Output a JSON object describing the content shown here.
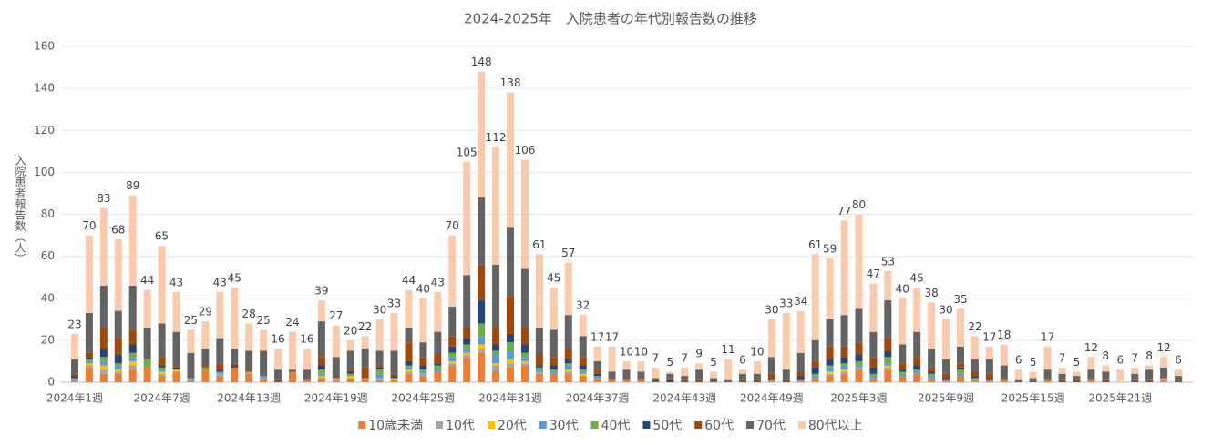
{
  "chart_data": {
    "type": "stacked_bar",
    "title": "2024-2025年　入院患者の年代別報告数の推移",
    "y_label": "入院患者報告数（人）",
    "categories": [
      "2024年1週",
      null,
      null,
      null,
      null,
      null,
      "2024年7週",
      null,
      null,
      null,
      null,
      null,
      "2024年13週",
      null,
      null,
      null,
      null,
      null,
      "2024年19週",
      null,
      null,
      null,
      null,
      null,
      "2024年25週",
      null,
      null,
      null,
      null,
      null,
      "2024年31週",
      null,
      null,
      null,
      null,
      null,
      "2024年37週",
      null,
      null,
      null,
      null,
      null,
      "2024年43週",
      null,
      null,
      null,
      null,
      null,
      "2024年49週",
      null,
      null,
      null,
      null,
      null,
      "2025年3週",
      null,
      null,
      null,
      null,
      null,
      "2025年9週",
      null,
      null,
      null,
      null,
      null,
      "2025年15週",
      null,
      null,
      null,
      null,
      null,
      "2025年21週",
      null,
      null,
      null,
      null
    ],
    "series": [
      {
        "name": "10歳未満",
        "color": "#ed7d31",
        "values": [
          1,
          7,
          4,
          4,
          6,
          7,
          3,
          5,
          1,
          6,
          3,
          7,
          4,
          2,
          0,
          5,
          1,
          2,
          1,
          2,
          2,
          1,
          1,
          4,
          3,
          5,
          8,
          12,
          14,
          5,
          7,
          8,
          4,
          4,
          4,
          3,
          2,
          1,
          1,
          1,
          0,
          0,
          0,
          0,
          0,
          0,
          0,
          0,
          1,
          0,
          1,
          2,
          3,
          4,
          6,
          2,
          6,
          3,
          4,
          2,
          1,
          3,
          1,
          1,
          1,
          0,
          0,
          1,
          0,
          0,
          1,
          0,
          0,
          0,
          0,
          1,
          0
        ]
      },
      {
        "name": "10代",
        "color": "#a5a5a5",
        "values": [
          0,
          1,
          2,
          1,
          2,
          0,
          1,
          0,
          0,
          0,
          1,
          0,
          1,
          0,
          0,
          0,
          0,
          0,
          1,
          0,
          0,
          1,
          0,
          1,
          1,
          0,
          1,
          1,
          2,
          3,
          2,
          1,
          1,
          0,
          1,
          0,
          0,
          0,
          0,
          0,
          0,
          0,
          0,
          0,
          0,
          0,
          0,
          0,
          0,
          0,
          0,
          0,
          1,
          1,
          1,
          0,
          1,
          0,
          0,
          0,
          0,
          0,
          0,
          0,
          0,
          0,
          0,
          0,
          0,
          0,
          0,
          0,
          0,
          0,
          0,
          1,
          0
        ]
      },
      {
        "name": "20代",
        "color": "#ffc000",
        "values": [
          0,
          1,
          2,
          1,
          2,
          0,
          1,
          1,
          0,
          0,
          0,
          0,
          0,
          0,
          0,
          0,
          0,
          1,
          0,
          1,
          0,
          0,
          1,
          1,
          0,
          0,
          1,
          1,
          2,
          1,
          2,
          1,
          0,
          0,
          1,
          1,
          0,
          0,
          0,
          0,
          0,
          0,
          0,
          0,
          0,
          0,
          0,
          0,
          0,
          0,
          0,
          0,
          1,
          1,
          0,
          0,
          1,
          0,
          0,
          0,
          0,
          0,
          0,
          0,
          0,
          0,
          0,
          0,
          0,
          0,
          0,
          0,
          0,
          0,
          0,
          0,
          0
        ]
      },
      {
        "name": "30代",
        "color": "#5b9bd5",
        "values": [
          1,
          1,
          2,
          2,
          2,
          0,
          1,
          0,
          1,
          0,
          1,
          0,
          0,
          1,
          0,
          0,
          0,
          1,
          0,
          0,
          0,
          2,
          0,
          1,
          1,
          1,
          2,
          2,
          4,
          4,
          4,
          2,
          1,
          1,
          2,
          1,
          1,
          0,
          0,
          0,
          0,
          0,
          0,
          0,
          0,
          0,
          0,
          0,
          0,
          0,
          0,
          1,
          2,
          2,
          1,
          1,
          1,
          1,
          1,
          1,
          0,
          1,
          0,
          0,
          0,
          0,
          0,
          0,
          0,
          0,
          0,
          0,
          0,
          0,
          0,
          0,
          0
        ]
      },
      {
        "name": "40代",
        "color": "#70ad47",
        "values": [
          0,
          1,
          2,
          1,
          2,
          4,
          1,
          0,
          0,
          1,
          0,
          0,
          0,
          0,
          0,
          0,
          0,
          2,
          0,
          1,
          0,
          2,
          0,
          1,
          1,
          2,
          2,
          2,
          6,
          2,
          4,
          2,
          1,
          1,
          1,
          1,
          0,
          0,
          0,
          0,
          0,
          0,
          0,
          0,
          0,
          0,
          0,
          0,
          0,
          0,
          0,
          1,
          1,
          1,
          2,
          1,
          3,
          1,
          1,
          1,
          0,
          2,
          1,
          0,
          0,
          0,
          0,
          0,
          0,
          0,
          0,
          0,
          0,
          0,
          0,
          0,
          0
        ]
      },
      {
        "name": "50代",
        "color": "#264478",
        "values": [
          1,
          1,
          4,
          4,
          4,
          0,
          1,
          1,
          0,
          0,
          1,
          1,
          0,
          0,
          0,
          0,
          0,
          2,
          0,
          1,
          0,
          1,
          1,
          2,
          2,
          1,
          3,
          3,
          11,
          3,
          4,
          4,
          1,
          2,
          2,
          2,
          1,
          0,
          0,
          0,
          0,
          1,
          0,
          0,
          0,
          0,
          0,
          0,
          1,
          0,
          2,
          3,
          3,
          3,
          3,
          3,
          3,
          1,
          2,
          1,
          1,
          1,
          1,
          1,
          0,
          0,
          0,
          0,
          0,
          0,
          0,
          0,
          0,
          0,
          0,
          0,
          0
        ]
      },
      {
        "name": "60代",
        "color": "#9e480e",
        "values": [
          1,
          2,
          10,
          8,
          7,
          0,
          4,
          1,
          0,
          1,
          3,
          1,
          1,
          0,
          1,
          0,
          1,
          4,
          1,
          1,
          5,
          1,
          1,
          9,
          4,
          4,
          5,
          5,
          17,
          8,
          18,
          8,
          5,
          4,
          5,
          4,
          2,
          1,
          1,
          1,
          0,
          1,
          1,
          1,
          0,
          0,
          1,
          1,
          2,
          1,
          2,
          3,
          6,
          5,
          6,
          5,
          6,
          3,
          4,
          2,
          2,
          2,
          2,
          2,
          1,
          0,
          0,
          1,
          1,
          1,
          1,
          1,
          0,
          1,
          1,
          1,
          0
        ]
      },
      {
        "name": "70代",
        "color": "#636363",
        "values": [
          7,
          19,
          20,
          13,
          21,
          15,
          16,
          16,
          12,
          8,
          12,
          7,
          9,
          12,
          5,
          1,
          4,
          17,
          9,
          9,
          9,
          7,
          11,
          7,
          7,
          11,
          14,
          25,
          32,
          30,
          33,
          28,
          13,
          13,
          16,
          10,
          4,
          3,
          4,
          3,
          2,
          2,
          2,
          5,
          2,
          1,
          3,
          3,
          8,
          5,
          9,
          10,
          13,
          15,
          16,
          12,
          18,
          9,
          12,
          9,
          7,
          8,
          6,
          7,
          6,
          1,
          2,
          4,
          3,
          2,
          4,
          4,
          0,
          3,
          5,
          4,
          3
        ]
      },
      {
        "name": "80代以上",
        "color": "#f8cbad",
        "values": [
          12,
          37,
          37,
          34,
          43,
          18,
          37,
          19,
          11,
          13,
          22,
          29,
          13,
          10,
          10,
          18,
          10,
          10,
          15,
          5,
          6,
          15,
          18,
          18,
          21,
          19,
          34,
          54,
          60,
          56,
          64,
          52,
          35,
          20,
          25,
          10,
          7,
          12,
          4,
          5,
          5,
          1,
          4,
          3,
          3,
          10,
          2,
          6,
          18,
          27,
          20,
          41,
          29,
          45,
          45,
          23,
          14,
          22,
          21,
          22,
          19,
          18,
          11,
          6,
          10,
          5,
          3,
          11,
          3,
          2,
          6,
          3,
          6,
          3,
          2,
          5,
          3
        ]
      }
    ],
    "totals": [
      23,
      70,
      83,
      68,
      89,
      44,
      65,
      43,
      25,
      29,
      43,
      45,
      28,
      25,
      16,
      24,
      16,
      39,
      27,
      20,
      22,
      30,
      33,
      44,
      40,
      43,
      70,
      105,
      148,
      112,
      138,
      106,
      61,
      45,
      57,
      32,
      17,
      17,
      10,
      10,
      7,
      5,
      7,
      9,
      5,
      11,
      6,
      10,
      30,
      33,
      34,
      61,
      59,
      77,
      80,
      47,
      53,
      40,
      45,
      38,
      30,
      35,
      22,
      17,
      18,
      6,
      5,
      17,
      7,
      5,
      12,
      8,
      6,
      7,
      8,
      12,
      6
    ],
    "ylim": [
      0,
      160
    ],
    "yticks": [
      0,
      20,
      40,
      60,
      80,
      100,
      120,
      140,
      160
    ],
    "grid": true,
    "legend": "bottom"
  }
}
